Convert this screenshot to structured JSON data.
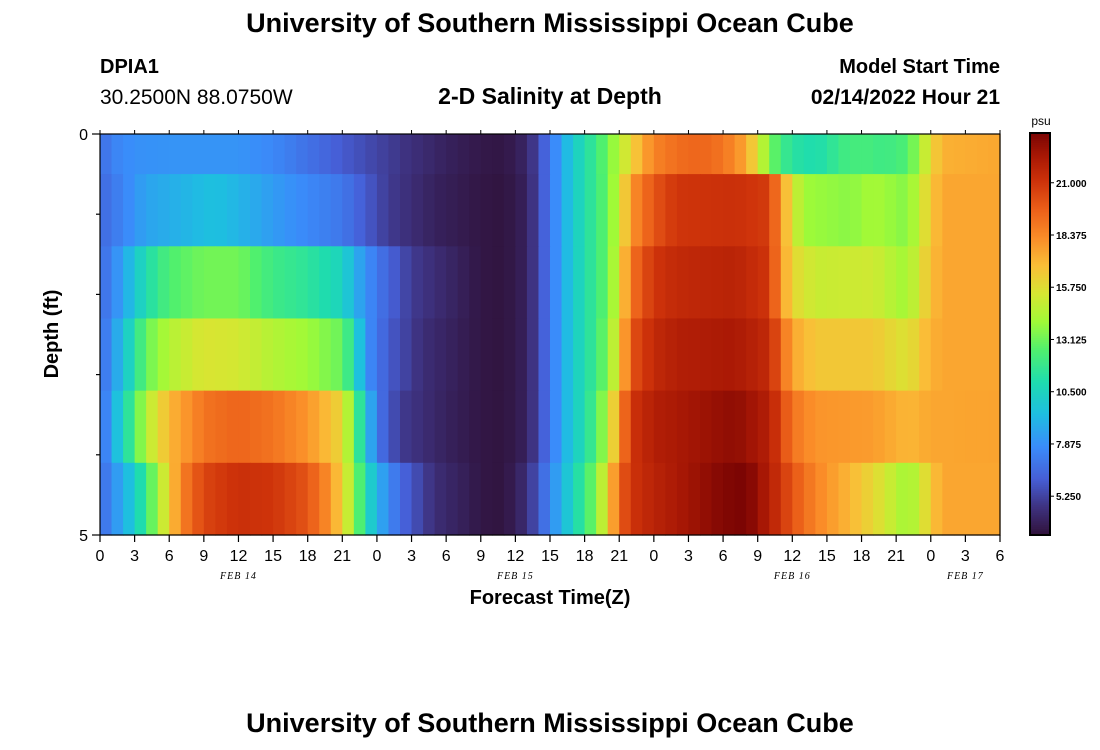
{
  "header": {
    "title": "University of Southern Mississippi Ocean Cube",
    "station_id": "DPIA1",
    "station_location": "30.2500N  88.0750W",
    "subtitle": "2-D Salinity at Depth",
    "model_start_label": "Model Start Time",
    "model_start_value": "02/14/2022 Hour 21"
  },
  "footer": {
    "title": "University of Southern Mississippi Ocean Cube"
  },
  "chart_data": {
    "type": "heatmap",
    "title": "2-D Salinity at Depth",
    "xlabel": "Forecast Time(Z)",
    "ylabel": "Depth (ft)",
    "colorbar_label": "psu",
    "colorbar_ticks": [
      5.25,
      7.875,
      10.5,
      13.125,
      15.75,
      18.375,
      21.0
    ],
    "colorbar_tick_labels": [
      "5.250",
      "7.875",
      "10.500",
      "13.125",
      "15.750",
      "18.375",
      "21.000"
    ],
    "color_range": [
      3.3,
      23.5
    ],
    "x_range_hours": [
      0,
      78
    ],
    "x_tick_labels": [
      "0",
      "3",
      "6",
      "9",
      "12",
      "15",
      "18",
      "21",
      "0",
      "3",
      "6",
      "9",
      "12",
      "15",
      "18",
      "21",
      "0",
      "3",
      "6",
      "9",
      "12",
      "15",
      "18",
      "21",
      "0",
      "3",
      "6"
    ],
    "date_labels": [
      {
        "label": "FEB 14",
        "hour": 12
      },
      {
        "label": "FEB 15",
        "hour": 36
      },
      {
        "label": "FEB 16",
        "hour": 60
      },
      {
        "label": "FEB 17",
        "hour": 75
      }
    ],
    "y_range": [
      0,
      5
    ],
    "y_tick_labels": [
      "0",
      "5"
    ],
    "depth_levels": 5,
    "surface_series": [
      {
        "h": 0,
        "v": 6.6
      },
      {
        "h": 1,
        "v": 7.4
      },
      {
        "h": 3,
        "v": 7.9
      },
      {
        "h": 6,
        "v": 8.0
      },
      {
        "h": 12,
        "v": 8.0
      },
      {
        "h": 15,
        "v": 7.6
      },
      {
        "h": 18,
        "v": 6.8
      },
      {
        "h": 21,
        "v": 6.0
      },
      {
        "h": 24,
        "v": 5.3
      },
      {
        "h": 27,
        "v": 4.6
      },
      {
        "h": 30,
        "v": 4.0
      },
      {
        "h": 33,
        "v": 3.6
      },
      {
        "h": 35,
        "v": 3.5
      },
      {
        "h": 37,
        "v": 4.2
      },
      {
        "h": 38,
        "v": 5.5
      },
      {
        "h": 39,
        "v": 7.0
      },
      {
        "h": 40,
        "v": 8.5
      },
      {
        "h": 41,
        "v": 10.0
      },
      {
        "h": 42,
        "v": 11.0
      },
      {
        "h": 43,
        "v": 12.0
      },
      {
        "h": 44,
        "v": 13.2
      },
      {
        "h": 45,
        "v": 14.5
      },
      {
        "h": 46,
        "v": 16.0
      },
      {
        "h": 47,
        "v": 17.4
      },
      {
        "h": 48,
        "v": 18.5
      },
      {
        "h": 50,
        "v": 19.2
      },
      {
        "h": 52,
        "v": 19.5
      },
      {
        "h": 54,
        "v": 19.0
      },
      {
        "h": 56,
        "v": 17.5
      },
      {
        "h": 57,
        "v": 15.5
      },
      {
        "h": 58,
        "v": 13.5
      },
      {
        "h": 59,
        "v": 12.0
      },
      {
        "h": 61,
        "v": 11.0
      },
      {
        "h": 63,
        "v": 11.2
      },
      {
        "h": 64,
        "v": 12.0
      },
      {
        "h": 66,
        "v": 12.3
      },
      {
        "h": 68,
        "v": 12.0
      },
      {
        "h": 70,
        "v": 12.5
      },
      {
        "h": 71,
        "v": 14.0
      },
      {
        "h": 72,
        "v": 16.0
      },
      {
        "h": 73,
        "v": 17.2
      },
      {
        "h": 78,
        "v": 17.5
      }
    ],
    "layer_series": [
      [
        {
          "h": 0,
          "v": 6.5
        },
        {
          "h": 2,
          "v": 7.5
        },
        {
          "h": 4,
          "v": 8.5
        },
        {
          "h": 7,
          "v": 9.0
        },
        {
          "h": 10,
          "v": 9.5
        },
        {
          "h": 13,
          "v": 8.8
        },
        {
          "h": 16,
          "v": 8.0
        },
        {
          "h": 18,
          "v": 7.6
        },
        {
          "h": 21,
          "v": 7.0
        },
        {
          "h": 23,
          "v": 6.0
        },
        {
          "h": 25,
          "v": 5.0
        },
        {
          "h": 29,
          "v": 4.0
        },
        {
          "h": 33,
          "v": 3.5
        },
        {
          "h": 35,
          "v": 3.4
        },
        {
          "h": 37,
          "v": 4.0
        },
        {
          "h": 38,
          "v": 5.5
        },
        {
          "h": 39,
          "v": 7.0
        },
        {
          "h": 40,
          "v": 8.5
        },
        {
          "h": 41,
          "v": 10.0
        },
        {
          "h": 42,
          "v": 11.0
        },
        {
          "h": 43,
          "v": 12.0
        },
        {
          "h": 44,
          "v": 13.0
        },
        {
          "h": 45,
          "v": 15.0
        },
        {
          "h": 46,
          "v": 18.0
        },
        {
          "h": 48,
          "v": 20.0
        },
        {
          "h": 50,
          "v": 21.0
        },
        {
          "h": 55,
          "v": 21.2
        },
        {
          "h": 58,
          "v": 20.8
        },
        {
          "h": 59,
          "v": 18.0
        },
        {
          "h": 60,
          "v": 15.5
        },
        {
          "h": 61,
          "v": 14.0
        },
        {
          "h": 65,
          "v": 13.6
        },
        {
          "h": 67,
          "v": 14.2
        },
        {
          "h": 70,
          "v": 13.5
        },
        {
          "h": 71,
          "v": 15.0
        },
        {
          "h": 72,
          "v": 16.5
        },
        {
          "h": 73,
          "v": 17.5
        },
        {
          "h": 78,
          "v": 17.5
        }
      ],
      [
        {
          "h": 0,
          "v": 6.5
        },
        {
          "h": 2,
          "v": 8.5
        },
        {
          "h": 4,
          "v": 11.0
        },
        {
          "h": 6,
          "v": 12.5
        },
        {
          "h": 9,
          "v": 13.2
        },
        {
          "h": 12,
          "v": 13.2
        },
        {
          "h": 15,
          "v": 12.0
        },
        {
          "h": 18,
          "v": 11.5
        },
        {
          "h": 21,
          "v": 10.5
        },
        {
          "h": 22,
          "v": 9.0
        },
        {
          "h": 24,
          "v": 7.0
        },
        {
          "h": 27,
          "v": 5.0
        },
        {
          "h": 31,
          "v": 4.0
        },
        {
          "h": 33,
          "v": 3.5
        },
        {
          "h": 35,
          "v": 3.4
        },
        {
          "h": 37,
          "v": 4.0
        },
        {
          "h": 38,
          "v": 5.5
        },
        {
          "h": 39,
          "v": 7.0
        },
        {
          "h": 40,
          "v": 8.5
        },
        {
          "h": 41,
          "v": 10.0
        },
        {
          "h": 42,
          "v": 11.0
        },
        {
          "h": 43,
          "v": 12.0
        },
        {
          "h": 44,
          "v": 13.0
        },
        {
          "h": 45,
          "v": 15.5
        },
        {
          "h": 46,
          "v": 19.0
        },
        {
          "h": 48,
          "v": 21.0
        },
        {
          "h": 50,
          "v": 21.5
        },
        {
          "h": 55,
          "v": 21.8
        },
        {
          "h": 58,
          "v": 21.0
        },
        {
          "h": 59,
          "v": 18.0
        },
        {
          "h": 60,
          "v": 16.0
        },
        {
          "h": 62,
          "v": 15.0
        },
        {
          "h": 67,
          "v": 15.2
        },
        {
          "h": 70,
          "v": 14.0
        },
        {
          "h": 71,
          "v": 15.5
        },
        {
          "h": 72,
          "v": 16.8
        },
        {
          "h": 73,
          "v": 17.5
        },
        {
          "h": 78,
          "v": 17.5
        }
      ],
      [
        {
          "h": 0,
          "v": 6.5
        },
        {
          "h": 2,
          "v": 9.5
        },
        {
          "h": 4,
          "v": 13.0
        },
        {
          "h": 6,
          "v": 14.5
        },
        {
          "h": 9,
          "v": 15.5
        },
        {
          "h": 12,
          "v": 15.3
        },
        {
          "h": 15,
          "v": 14.5
        },
        {
          "h": 18,
          "v": 14.0
        },
        {
          "h": 21,
          "v": 13.0
        },
        {
          "h": 22,
          "v": 11.0
        },
        {
          "h": 23,
          "v": 8.0
        },
        {
          "h": 25,
          "v": 6.0
        },
        {
          "h": 28,
          "v": 4.5
        },
        {
          "h": 33,
          "v": 3.5
        },
        {
          "h": 35,
          "v": 3.4
        },
        {
          "h": 37,
          "v": 4.0
        },
        {
          "h": 38,
          "v": 5.5
        },
        {
          "h": 39,
          "v": 7.0
        },
        {
          "h": 40,
          "v": 8.5
        },
        {
          "h": 41,
          "v": 10.0
        },
        {
          "h": 42,
          "v": 11.0
        },
        {
          "h": 43,
          "v": 12.0
        },
        {
          "h": 44,
          "v": 13.5
        },
        {
          "h": 45,
          "v": 16.0
        },
        {
          "h": 46,
          "v": 20.0
        },
        {
          "h": 48,
          "v": 21.5
        },
        {
          "h": 50,
          "v": 22.0
        },
        {
          "h": 55,
          "v": 22.3
        },
        {
          "h": 58,
          "v": 21.5
        },
        {
          "h": 59,
          "v": 19.5
        },
        {
          "h": 60,
          "v": 17.5
        },
        {
          "h": 62,
          "v": 16.5
        },
        {
          "h": 67,
          "v": 16.5
        },
        {
          "h": 70,
          "v": 15.5
        },
        {
          "h": 71,
          "v": 16.5
        },
        {
          "h": 72,
          "v": 17.2
        },
        {
          "h": 73,
          "v": 17.5
        },
        {
          "h": 78,
          "v": 17.5
        }
      ],
      [
        {
          "h": 0,
          "v": 6.5
        },
        {
          "h": 2,
          "v": 10.5
        },
        {
          "h": 4,
          "v": 14.5
        },
        {
          "h": 6,
          "v": 17.0
        },
        {
          "h": 9,
          "v": 19.0
        },
        {
          "h": 12,
          "v": 19.5
        },
        {
          "h": 15,
          "v": 19.0
        },
        {
          "h": 18,
          "v": 18.0
        },
        {
          "h": 21,
          "v": 16.0
        },
        {
          "h": 22,
          "v": 13.0
        },
        {
          "h": 23,
          "v": 10.0
        },
        {
          "h": 24,
          "v": 7.0
        },
        {
          "h": 26,
          "v": 5.0
        },
        {
          "h": 30,
          "v": 4.0
        },
        {
          "h": 33,
          "v": 3.5
        },
        {
          "h": 35,
          "v": 3.4
        },
        {
          "h": 37,
          "v": 4.0
        },
        {
          "h": 38,
          "v": 5.5
        },
        {
          "h": 39,
          "v": 7.0
        },
        {
          "h": 40,
          "v": 8.5
        },
        {
          "h": 41,
          "v": 10.0
        },
        {
          "h": 42,
          "v": 11.0
        },
        {
          "h": 43,
          "v": 12.5
        },
        {
          "h": 44,
          "v": 14.5
        },
        {
          "h": 45,
          "v": 18.0
        },
        {
          "h": 46,
          "v": 21.0
        },
        {
          "h": 48,
          "v": 22.0
        },
        {
          "h": 55,
          "v": 23.0
        },
        {
          "h": 58,
          "v": 22.0
        },
        {
          "h": 59,
          "v": 20.5
        },
        {
          "h": 60,
          "v": 19.0
        },
        {
          "h": 62,
          "v": 18.0
        },
        {
          "h": 67,
          "v": 17.8
        },
        {
          "h": 70,
          "v": 17.0
        },
        {
          "h": 72,
          "v": 17.5
        },
        {
          "h": 78,
          "v": 17.6
        }
      ],
      [
        {
          "h": 0,
          "v": 6.5
        },
        {
          "h": 3,
          "v": 10.0
        },
        {
          "h": 5,
          "v": 14.0
        },
        {
          "h": 7,
          "v": 18.5
        },
        {
          "h": 9,
          "v": 20.5
        },
        {
          "h": 12,
          "v": 21.2
        },
        {
          "h": 15,
          "v": 21.0
        },
        {
          "h": 18,
          "v": 20.0
        },
        {
          "h": 20,
          "v": 18.0
        },
        {
          "h": 22,
          "v": 14.0
        },
        {
          "h": 23,
          "v": 11.0
        },
        {
          "h": 24,
          "v": 9.0
        },
        {
          "h": 26,
          "v": 6.5
        },
        {
          "h": 29,
          "v": 4.5
        },
        {
          "h": 32,
          "v": 3.8
        },
        {
          "h": 33,
          "v": 3.5
        },
        {
          "h": 35,
          "v": 3.4
        },
        {
          "h": 37,
          "v": 4.5
        },
        {
          "h": 38,
          "v": 6.0
        },
        {
          "h": 39,
          "v": 7.5
        },
        {
          "h": 40,
          "v": 9.0
        },
        {
          "h": 41,
          "v": 10.5
        },
        {
          "h": 42,
          "v": 12.0
        },
        {
          "h": 43,
          "v": 13.5
        },
        {
          "h": 44,
          "v": 16.0
        },
        {
          "h": 45,
          "v": 19.5
        },
        {
          "h": 46,
          "v": 21.0
        },
        {
          "h": 48,
          "v": 21.8
        },
        {
          "h": 51,
          "v": 22.5
        },
        {
          "h": 54,
          "v": 23.3
        },
        {
          "h": 56,
          "v": 23.5
        },
        {
          "h": 58,
          "v": 22.0
        },
        {
          "h": 60,
          "v": 20.0
        },
        {
          "h": 62,
          "v": 18.5
        },
        {
          "h": 64,
          "v": 17.5
        },
        {
          "h": 67,
          "v": 16.0
        },
        {
          "h": 70,
          "v": 14.0
        },
        {
          "h": 71,
          "v": 15.0
        },
        {
          "h": 72,
          "v": 16.5
        },
        {
          "h": 73,
          "v": 17.5
        },
        {
          "h": 78,
          "v": 17.5
        }
      ]
    ]
  }
}
